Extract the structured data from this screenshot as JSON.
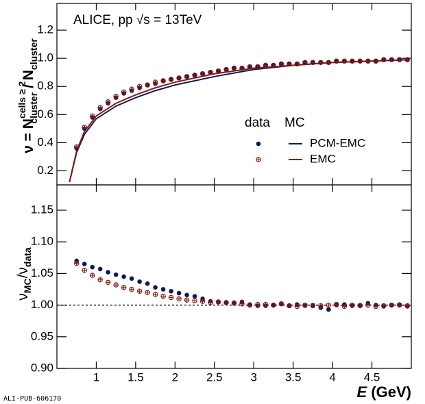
{
  "title": "ALICE, pp √s = 13TeV",
  "footer": "ALI-PUB-606170",
  "legend": {
    "data_header": "data",
    "mc_header": "MC"
  },
  "chart_data": [
    {
      "type": "scatter",
      "ylabel": {
        "main": "ν = N",
        "sup": "cells ≥ 2",
        "sub": "cluster",
        "mid": " / N",
        "sub2": "cluster"
      },
      "xlim": [
        0.5,
        5
      ],
      "ylim": [
        0.1,
        1.39
      ],
      "yticks": [
        0.2,
        0.4,
        0.6,
        0.8,
        {
          "value": 1.0,
          "label": "1.0"
        },
        1.2
      ],
      "x": [
        0.75,
        0.85,
        0.95,
        1.05,
        1.15,
        1.25,
        1.35,
        1.45,
        1.55,
        1.65,
        1.75,
        1.85,
        1.95,
        2.05,
        2.15,
        2.25,
        2.35,
        2.45,
        2.55,
        2.65,
        2.75,
        2.85,
        2.95,
        3.05,
        3.15,
        3.25,
        3.35,
        3.45,
        3.55,
        3.65,
        3.75,
        3.85,
        3.95,
        4.05,
        4.15,
        4.25,
        4.35,
        4.45,
        4.55,
        4.65,
        4.75,
        4.85,
        4.95
      ],
      "series": [
        {
          "name": "PCM-EMC",
          "color": "#0c1a5c",
          "marker": "filled",
          "values": [
            0.36,
            0.5,
            0.58,
            0.64,
            0.68,
            0.72,
            0.75,
            0.77,
            0.79,
            0.81,
            0.82,
            0.84,
            0.85,
            0.86,
            0.87,
            0.88,
            0.89,
            0.9,
            0.91,
            0.92,
            0.93,
            0.93,
            0.94,
            0.94,
            0.95,
            0.95,
            0.96,
            0.96,
            0.96,
            0.97,
            0.97,
            0.97,
            0.97,
            0.98,
            0.98,
            0.98,
            0.98,
            0.98,
            0.98,
            0.99,
            0.99,
            0.99,
            0.99
          ]
        },
        {
          "name": "EMC",
          "color": "#8b1a12",
          "marker": "open",
          "values": [
            0.37,
            0.51,
            0.59,
            0.65,
            0.69,
            0.73,
            0.76,
            0.78,
            0.8,
            0.81,
            0.83,
            0.84,
            0.85,
            0.86,
            0.87,
            0.88,
            0.89,
            0.9,
            0.91,
            0.92,
            0.93,
            0.93,
            0.94,
            0.94,
            0.95,
            0.95,
            0.96,
            0.96,
            0.96,
            0.97,
            0.97,
            0.97,
            0.97,
            0.98,
            0.98,
            0.98,
            0.98,
            0.98,
            0.98,
            0.99,
            0.99,
            0.99,
            0.99
          ]
        }
      ],
      "mc": [
        {
          "color": "#0c1a5c",
          "x": [
            0.66,
            0.75,
            0.85,
            1.0,
            1.25,
            1.5,
            1.75,
            2.0,
            2.5,
            3.0,
            3.5,
            4.0,
            4.5,
            4.95
          ],
          "values": [
            0.12,
            0.33,
            0.46,
            0.57,
            0.66,
            0.72,
            0.77,
            0.81,
            0.87,
            0.92,
            0.95,
            0.97,
            0.98,
            0.99
          ]
        },
        {
          "color": "#8b1a12",
          "x": [
            0.66,
            0.75,
            0.85,
            1.0,
            1.25,
            1.5,
            1.75,
            2.0,
            2.5,
            3.0,
            3.5,
            4.0,
            4.5,
            4.95
          ],
          "values": [
            0.12,
            0.34,
            0.48,
            0.59,
            0.68,
            0.74,
            0.79,
            0.83,
            0.89,
            0.93,
            0.95,
            0.97,
            0.98,
            0.99
          ]
        }
      ]
    },
    {
      "type": "scatter",
      "ylabel": {
        "main": "ν",
        "sub": "MC",
        "mid": "/ν",
        "sub2": "data"
      },
      "xlabel": {
        "main": "E",
        "unit": " (GeV)"
      },
      "xlim": [
        0.5,
        5
      ],
      "ylim": [
        0.9,
        1.19
      ],
      "xticks": [
        1,
        1.5,
        2,
        2.5,
        3,
        3.5,
        4,
        4.5
      ],
      "yticks": [
        {
          "value": 0.9,
          "label": "0.90"
        },
        0.95,
        {
          "value": 1.0,
          "label": "1.00"
        },
        1.05,
        {
          "value": 1.1,
          "label": "1.10"
        },
        1.15
      ],
      "reference_line": 1,
      "x": [
        0.75,
        0.85,
        0.95,
        1.05,
        1.15,
        1.25,
        1.35,
        1.45,
        1.55,
        1.65,
        1.75,
        1.85,
        1.95,
        2.05,
        2.15,
        2.25,
        2.35,
        2.45,
        2.55,
        2.65,
        2.75,
        2.85,
        2.95,
        3.05,
        3.15,
        3.25,
        3.35,
        3.45,
        3.55,
        3.65,
        3.75,
        3.85,
        3.95,
        4.05,
        4.15,
        4.25,
        4.35,
        4.45,
        4.55,
        4.65,
        4.75,
        4.85,
        4.95
      ],
      "series": [
        {
          "color": "#0c1a5c",
          "marker": "filled",
          "values": [
            1.07,
            1.065,
            1.06,
            1.057,
            1.052,
            1.048,
            1.045,
            1.042,
            1.037,
            1.034,
            1.028,
            1.025,
            1.022,
            1.019,
            1.016,
            1.014,
            1.01,
            1.006,
            1.005,
            1.004,
            1.004,
            1.005,
            1.001,
            0.999,
            0.999,
            1.0,
            1.002,
            0.999,
            1.001,
            0.999,
            1.0,
            0.996,
            0.993,
            1.0,
            1.001,
            0.999,
            1.0,
            1.003,
            1.0,
            0.998,
            1.0,
            1.001,
            0.998
          ]
        },
        {
          "color": "#8b1a12",
          "marker": "open",
          "values": [
            1.066,
            1.055,
            1.047,
            1.04,
            1.036,
            1.032,
            1.028,
            1.025,
            1.022,
            1.02,
            1.017,
            1.014,
            1.012,
            1.01,
            1.008,
            1.007,
            1.006,
            1.004,
            1.005,
            1.004,
            1.003,
            1.002,
            1.0,
            1.001,
            1.001,
            1.0,
            1.002,
            0.999,
            0.998,
            1.0,
            0.999,
            0.999,
            1.0,
            1.001,
            0.998,
            1.0,
            0.999,
            1.0,
            0.998,
            0.999,
            1.0,
            1.0,
            0.999
          ]
        }
      ]
    }
  ]
}
